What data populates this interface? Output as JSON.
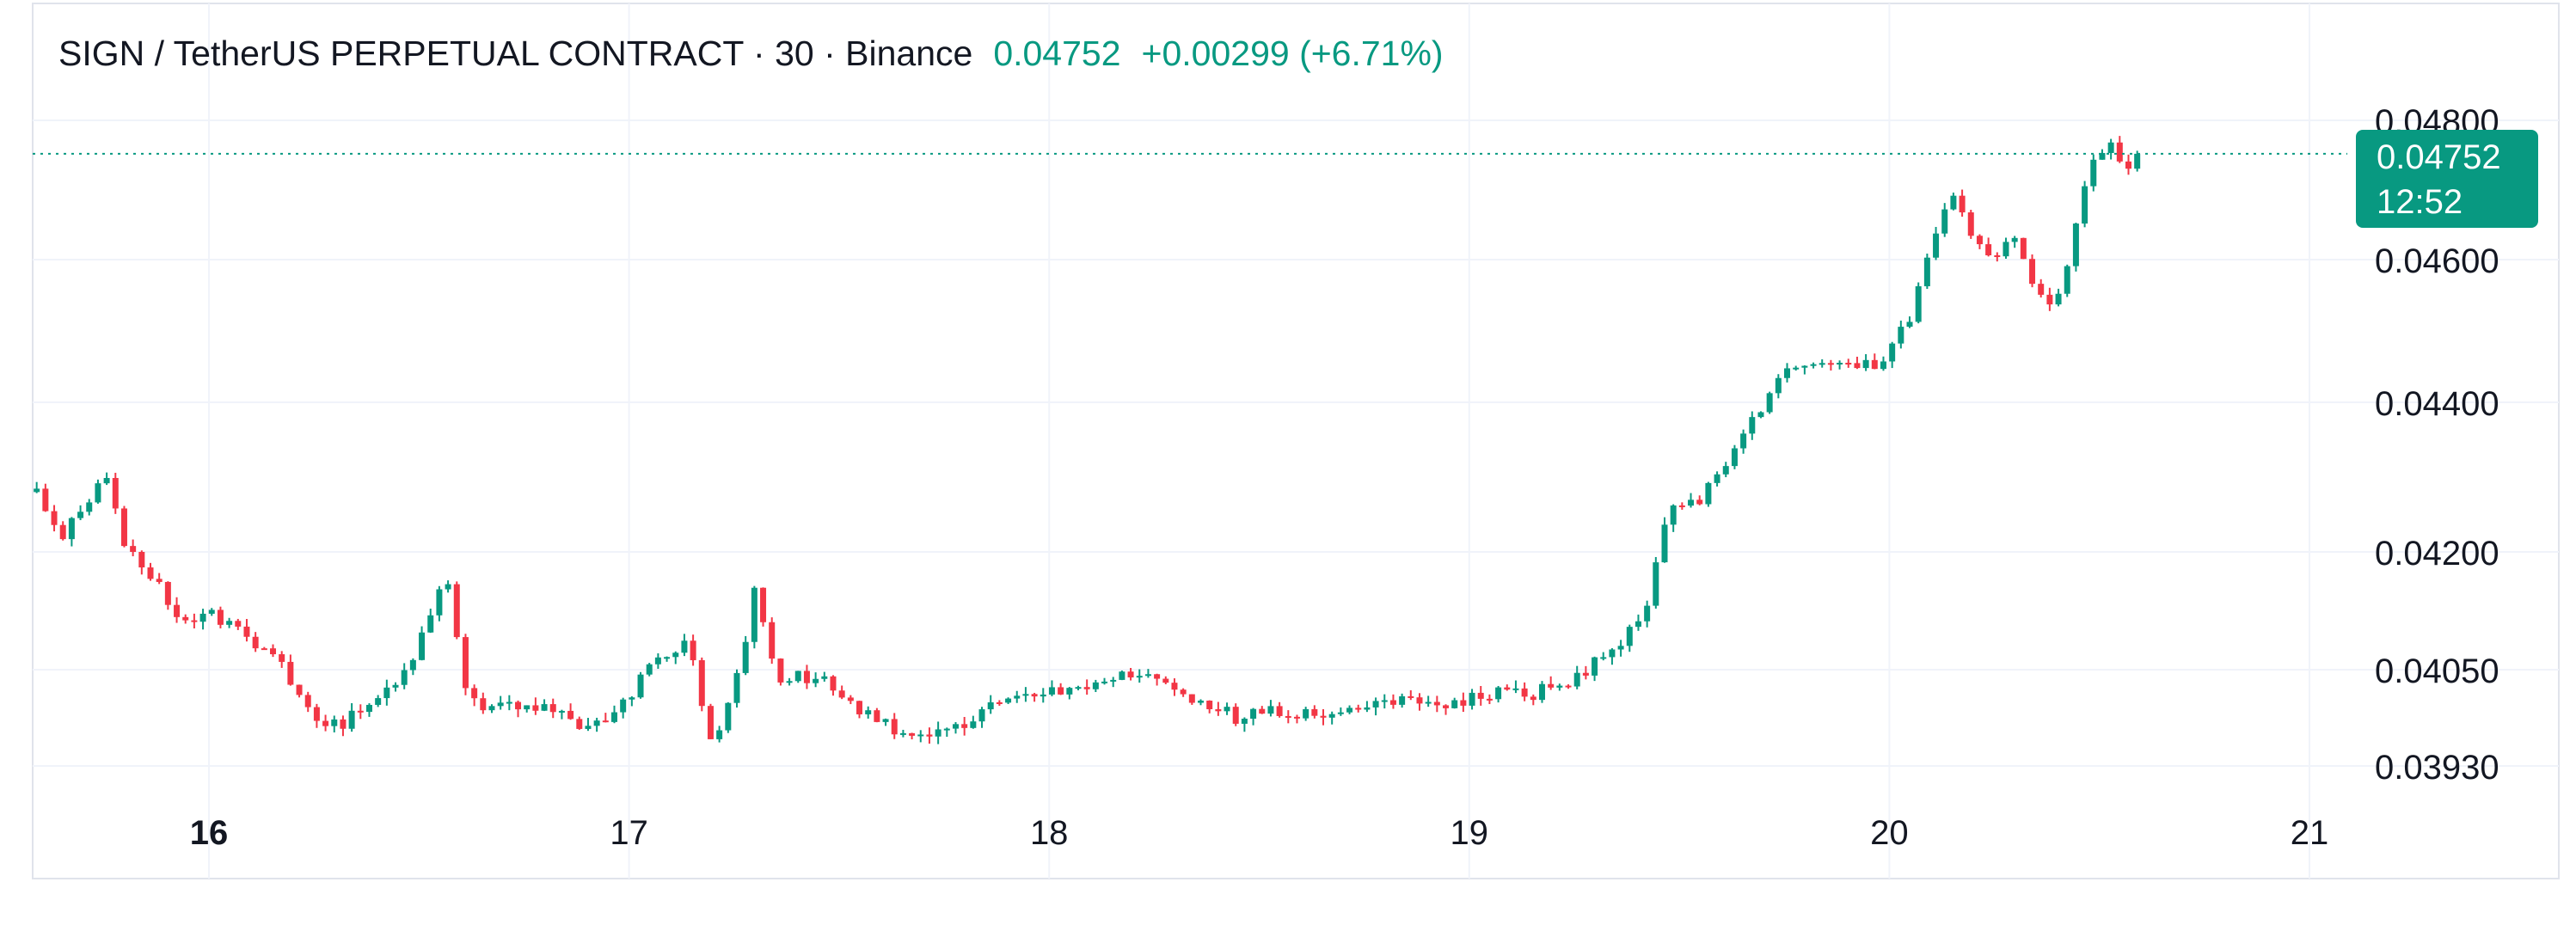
{
  "header": {
    "symbol": "SIGN / TetherUS PERPETUAL CONTRACT · 30 · Binance",
    "price": "0.04752",
    "change": "+0.00299 (+6.71%)"
  },
  "badge": {
    "price": "0.04752",
    "countdown": "12:52"
  },
  "colors": {
    "up": "#089981",
    "down": "#F23645",
    "grid": "#F0F3FA",
    "text": "#131722"
  },
  "chart_data": {
    "type": "candlestick",
    "interval_minutes": 30,
    "last_price": 0.04752,
    "y_ticks": [
      0.0393,
      0.0405,
      0.042,
      0.044,
      0.046,
      0.048
    ],
    "y_tick_labels": [
      "0.03930",
      "0.04050",
      "0.04200",
      "0.04400",
      "0.04600",
      "0.04800"
    ],
    "x_ticks": [
      16,
      17,
      18,
      19,
      20,
      21
    ],
    "x_tick_labels": [
      "16",
      "17",
      "18",
      "19",
      "20",
      "21"
    ],
    "x_range_days": [
      15.59,
      21.1
    ],
    "close_path": [
      [
        15.59,
        0.0428
      ],
      [
        15.65,
        0.0422
      ],
      [
        15.72,
        0.0427
      ],
      [
        15.75,
        0.0432
      ],
      [
        15.8,
        0.0421
      ],
      [
        15.88,
        0.0416
      ],
      [
        15.95,
        0.041
      ],
      [
        16.0,
        0.0412
      ],
      [
        16.05,
        0.0411
      ],
      [
        16.12,
        0.0408
      ],
      [
        16.18,
        0.0405
      ],
      [
        16.24,
        0.04
      ],
      [
        16.3,
        0.0398
      ],
      [
        16.38,
        0.04
      ],
      [
        16.45,
        0.0404
      ],
      [
        16.52,
        0.041
      ],
      [
        16.56,
        0.0418
      ],
      [
        16.62,
        0.0401
      ],
      [
        16.7,
        0.04
      ],
      [
        16.8,
        0.0401
      ],
      [
        16.9,
        0.0397
      ],
      [
        17.0,
        0.0402
      ],
      [
        17.08,
        0.0407
      ],
      [
        17.14,
        0.0408
      ],
      [
        17.2,
        0.0396
      ],
      [
        17.25,
        0.0402
      ],
      [
        17.3,
        0.0415
      ],
      [
        17.35,
        0.0404
      ],
      [
        17.45,
        0.0404
      ],
      [
        17.55,
        0.04
      ],
      [
        17.65,
        0.0397
      ],
      [
        17.75,
        0.0397
      ],
      [
        17.85,
        0.04
      ],
      [
        17.95,
        0.0402
      ],
      [
        18.05,
        0.0402
      ],
      [
        18.15,
        0.0404
      ],
      [
        18.25,
        0.0405
      ],
      [
        18.35,
        0.0401
      ],
      [
        18.45,
        0.0399
      ],
      [
        18.55,
        0.04
      ],
      [
        18.65,
        0.0399
      ],
      [
        18.75,
        0.04
      ],
      [
        18.85,
        0.0401
      ],
      [
        18.95,
        0.0401
      ],
      [
        19.05,
        0.0402
      ],
      [
        19.15,
        0.0402
      ],
      [
        19.25,
        0.0404
      ],
      [
        19.35,
        0.0408
      ],
      [
        19.42,
        0.0413
      ],
      [
        19.48,
        0.0427
      ],
      [
        19.55,
        0.0427
      ],
      [
        19.62,
        0.0433
      ],
      [
        19.68,
        0.0438
      ],
      [
        19.75,
        0.0445
      ],
      [
        19.82,
        0.0446
      ],
      [
        19.9,
        0.0446
      ],
      [
        19.98,
        0.0445
      ],
      [
        20.05,
        0.0452
      ],
      [
        20.1,
        0.0462
      ],
      [
        20.15,
        0.047
      ],
      [
        20.2,
        0.0462
      ],
      [
        20.25,
        0.046
      ],
      [
        20.3,
        0.0464
      ],
      [
        20.35,
        0.0455
      ],
      [
        20.4,
        0.0454
      ],
      [
        20.45,
        0.0466
      ],
      [
        20.48,
        0.0474
      ],
      [
        20.52,
        0.0477
      ],
      [
        20.56,
        0.0472
      ],
      [
        20.6,
        0.0475
      ]
    ]
  }
}
